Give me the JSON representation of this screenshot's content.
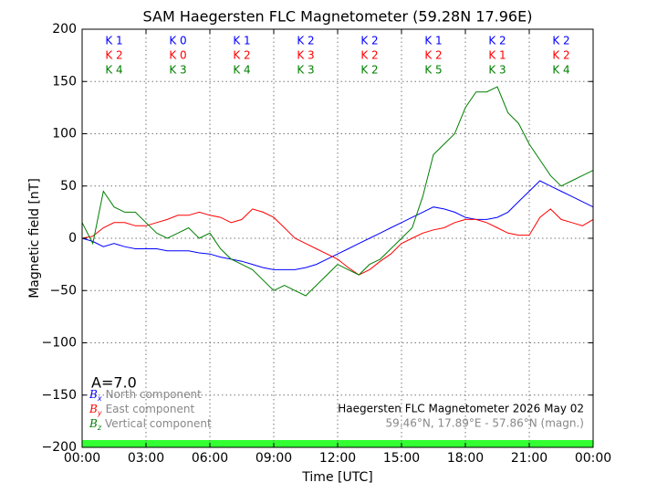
{
  "chart_data": {
    "type": "line",
    "title": "SAM Haegersten FLC Magnetometer (59.28N 17.96E)",
    "x_label": "Time [UTC]",
    "y_label": "Magnetic field [nT]",
    "xlim": [
      0,
      24
    ],
    "xticks": [
      {
        "value": 0,
        "label": "00:00"
      },
      {
        "value": 3,
        "label": "03:00"
      },
      {
        "value": 6,
        "label": "06:00"
      },
      {
        "value": 9,
        "label": "09:00"
      },
      {
        "value": 12,
        "label": "12:00"
      },
      {
        "value": 15,
        "label": "15:00"
      },
      {
        "value": 18,
        "label": "18:00"
      },
      {
        "value": 21,
        "label": "21:00"
      },
      {
        "value": 24,
        "label": "00:00"
      }
    ],
    "ylim": [
      -200,
      200
    ],
    "yticks": [
      {
        "value": -200,
        "label": "−200"
      },
      {
        "value": -150,
        "label": "−150"
      },
      {
        "value": -100,
        "label": "−100"
      },
      {
        "value": -50,
        "label": "−50"
      },
      0,
      50,
      100,
      150,
      200
    ],
    "grid": true,
    "x": [
      0,
      0.5,
      1,
      1.5,
      2,
      2.5,
      3,
      3.5,
      4,
      4.5,
      5,
      5.5,
      6,
      6.5,
      7,
      7.5,
      8,
      8.5,
      9,
      9.5,
      10,
      10.5,
      11,
      11.5,
      12,
      12.5,
      13,
      13.5,
      14,
      14.5,
      15,
      15.5,
      16,
      16.5,
      17,
      17.5,
      18,
      18.5,
      19,
      19.5,
      20,
      20.5,
      21,
      21.5,
      22,
      22.5,
      23,
      23.5,
      24
    ],
    "series": [
      {
        "name": "North component",
        "symbol": "B",
        "subscript": "x",
        "color": "#0000ff",
        "values": [
          0,
          -3,
          -8,
          -5,
          -8,
          -10,
          -10,
          -10,
          -12,
          -12,
          -12,
          -14,
          -15,
          -18,
          -20,
          -22,
          -25,
          -28,
          -30,
          -30,
          -30,
          -28,
          -25,
          -20,
          -15,
          -10,
          -5,
          0,
          5,
          10,
          15,
          20,
          25,
          30,
          28,
          25,
          20,
          18,
          18,
          20,
          25,
          35,
          45,
          55,
          50,
          45,
          40,
          35,
          30
        ]
      },
      {
        "name": "East component",
        "symbol": "B",
        "subscript": "y",
        "color": "#ff0000",
        "values": [
          0,
          2,
          10,
          15,
          15,
          12,
          12,
          15,
          18,
          22,
          22,
          25,
          22,
          20,
          15,
          18,
          28,
          25,
          20,
          10,
          0,
          -5,
          -10,
          -15,
          -20,
          -28,
          -35,
          -30,
          -22,
          -15,
          -5,
          0,
          5,
          8,
          10,
          15,
          18,
          18,
          15,
          10,
          5,
          3,
          3,
          20,
          28,
          18,
          15,
          12,
          18
        ]
      },
      {
        "name": "Vertical component",
        "symbol": "B",
        "subscript": "z",
        "color": "#007f00",
        "values": [
          15,
          -5,
          45,
          30,
          25,
          25,
          15,
          5,
          0,
          5,
          10,
          0,
          5,
          -10,
          -20,
          -25,
          -30,
          -40,
          -50,
          -45,
          -50,
          -55,
          -45,
          -35,
          -25,
          -30,
          -35,
          -25,
          -20,
          -10,
          0,
          10,
          40,
          80,
          90,
          100,
          125,
          140,
          140,
          145,
          120,
          110,
          90,
          75,
          60,
          50,
          55,
          60,
          65
        ]
      }
    ],
    "k_index": [
      [
        "K 1",
        "K 2",
        "K 4"
      ],
      [
        "K 0",
        "K 0",
        "K 3"
      ],
      [
        "K 1",
        "K 2",
        "K 4"
      ],
      [
        "K 2",
        "K 3",
        "K 3"
      ],
      [
        "K 2",
        "K 2",
        "K 2"
      ],
      [
        "K 1",
        "K 2",
        "K 5"
      ],
      [
        "K 2",
        "K 1",
        "K 3"
      ],
      [
        "K 2",
        "K 2",
        "K 4"
      ]
    ],
    "a_index": "A=7.0",
    "info_title": "Haegersten FLC Magnetometer 2026 May 02",
    "info_location": "59.46°N, 17.89°E - 57.86°N (magn.)"
  }
}
